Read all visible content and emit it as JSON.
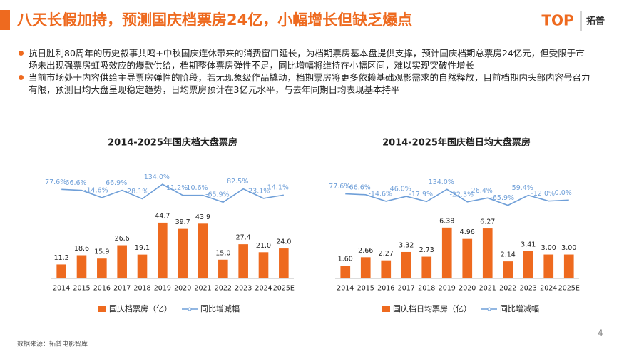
{
  "header": {
    "title": "八天长假加持，预测国庆档票房24亿，小幅增长但缺乏爆点",
    "logo": "TOP",
    "logo_cn": "拓普"
  },
  "bullets": [
    "抗日胜利80周年的历史叙事共鸣+中秋国庆连休带来的消费窗口延长，为档期票房基本盘提供支撑，预计国庆档期总票房24亿元，但受限于市场未出现强票房虹吸效应的爆款供给，档期整体票房弹性不足，同比增幅将维持在小幅区间，难以实现突破性增长",
    "当前市场处于内容供给主导票房弹性的阶段，若无现象级作品撬动，档期票房将更多依赖基础观影需求的自然释放，目前档期内头部内容号召力有限，预测日均大盘呈现稳定趋势，日均票房预计在3亿元水平，与去年同期日均表现基本持平"
  ],
  "chart_data": [
    {
      "type": "bar-line",
      "title": "2014-2025年国庆档大盘票房",
      "categories": [
        "2014",
        "2015",
        "2016",
        "2017",
        "2018",
        "2019",
        "2020",
        "2021",
        "2022",
        "2023",
        "2024",
        "2025E"
      ],
      "series": [
        {
          "name": "国庆档票房（亿）",
          "color": "#ee6a1f",
          "type": "bar",
          "values": [
            11.2,
            18.6,
            15.9,
            26.6,
            19.1,
            44.7,
            39.7,
            43.9,
            15.0,
            27.4,
            21.0,
            24.0
          ],
          "value_labels": [
            "11.2",
            "18.6",
            "15.9",
            "26.6",
            "19.1",
            "44.7",
            "39.7",
            "43.9",
            "15.0",
            "27.4",
            "21.0",
            "24.0"
          ]
        },
        {
          "name": "同比增减幅",
          "color": "#6f9fd8",
          "type": "line",
          "axis": "y2",
          "values": [
            77.6,
            66.6,
            -14.6,
            66.9,
            -28.1,
            134.0,
            11.2,
            10.6,
            -65.9,
            82.5,
            -23.1,
            14.1
          ],
          "value_labels": [
            "77.6%",
            "66.6%",
            "-14.6%",
            "66.9%",
            "-28.1%",
            "134.0%",
            "11.2%",
            "10.6%",
            "-65.9%",
            "82.5%",
            "-23.1%",
            "14.1%"
          ]
        }
      ],
      "ylim": [
        0,
        83
      ],
      "y2lim": [
        -920,
        240
      ]
    },
    {
      "type": "bar-line",
      "title": "2014-2025年国庆档日均大盘票房",
      "categories": [
        "2014",
        "2015",
        "2016",
        "2017",
        "2018",
        "2019",
        "2020",
        "2021",
        "2022",
        "2023",
        "2024",
        "2025E"
      ],
      "series": [
        {
          "name": "国庆档日均票房（亿）",
          "color": "#ee6a1f",
          "type": "bar",
          "values": [
            1.6,
            2.66,
            2.27,
            3.32,
            2.73,
            6.38,
            4.96,
            6.27,
            2.14,
            3.41,
            3.0,
            3.0
          ],
          "value_labels": [
            "1.60",
            "2.66",
            "2.27",
            "3.32",
            "2.73",
            "6.38",
            "4.96",
            "6.27",
            "2.14",
            "3.41",
            "3.00",
            "3.00"
          ]
        },
        {
          "name": "同比增减幅",
          "color": "#6f9fd8",
          "type": "line",
          "axis": "y2",
          "values": [
            77.6,
            66.6,
            -14.6,
            46.0,
            -17.9,
            134.0,
            -22.3,
            26.4,
            -65.9,
            59.4,
            -12.0,
            0.0
          ],
          "value_labels": [
            "77.6%",
            "66.6%",
            "-14.6%",
            "46.0%",
            "-17.9%",
            "134.0%",
            "-22.3%",
            "26.4%",
            "-65.9%",
            "59.4%",
            "-12.0%",
            "0.0%"
          ]
        }
      ],
      "ylim": [
        0,
        13
      ],
      "y2lim": [
        -980,
        315
      ]
    }
  ],
  "footer": {
    "source": "数据来源：拓普电影智库",
    "page": "4"
  }
}
